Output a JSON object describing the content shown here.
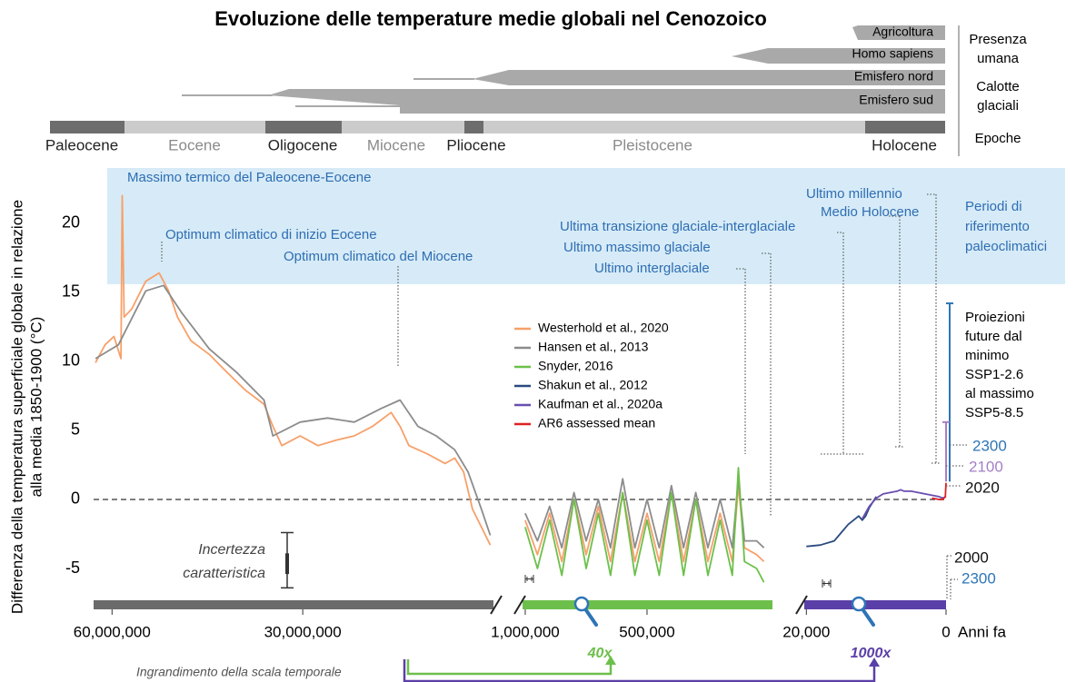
{
  "chart_data": {
    "type": "line",
    "title": "Evoluzione delle temperature medie globali nel Cenozoico",
    "ylabel": [
      "Differenza della temperatura superficiale globale in relazione",
      "alla media 1850-1900 (°C)"
    ],
    "xlabel": "Anni fa",
    "ylim": [
      -7.3,
      24
    ],
    "yticks": [
      -5,
      0,
      5,
      10,
      15,
      20
    ],
    "panels": [
      {
        "xlim": [
          62900000,
          0
        ],
        "bar_color": "#6b6b6b",
        "xticks": [
          {
            "value": 60000000,
            "label": "60,000,000"
          },
          {
            "value": 30000000,
            "label": "30,000,000"
          }
        ],
        "series": [
          {
            "color": "#f7a06a",
            "x": [
              62600000,
              61100000,
              59700000,
              58600000,
              58400000,
              58100000,
              56900000,
              54700000,
              52600000,
              51100000,
              49700000,
              47600000,
              44700000,
              41900000,
              39000000,
              36100000,
              34700000,
              33300000,
              30400000,
              27600000,
              24700000,
              21900000,
              19000000,
              16100000,
              14700000,
              13300000,
              10400000,
              7600000,
              6100000,
              4700000,
              3300000,
              1900000,
              500000
            ],
            "values": [
              9.9,
              11.2,
              11.8,
              10.2,
              22,
              13.2,
              13.8,
              15.8,
              16.4,
              15.1,
              13.2,
              11.5,
              10.5,
              9.2,
              7.9,
              6.9,
              5.3,
              3.9,
              4.6,
              3.9,
              4.3,
              4.6,
              5.3,
              6.3,
              5.3,
              3.9,
              3.3,
              2.6,
              3,
              2,
              -0.7,
              -2,
              -3.3
            ]
          },
          {
            "color": "#8c8c8c",
            "x": [
              62600000,
              59000000,
              54700000,
              51900000,
              49000000,
              44700000,
              40400000,
              36100000,
              34700000,
              30400000,
              26100000,
              21900000,
              17600000,
              14700000,
              11900000,
              9000000,
              6100000,
              4000000,
              1900000,
              500000
            ],
            "values": [
              10.2,
              11.2,
              15.1,
              15.5,
              13.5,
              10.9,
              9.2,
              7.2,
              4.6,
              5.6,
              5.9,
              5.6,
              6.6,
              7.2,
              5.3,
              4.6,
              3.6,
              2,
              -0.7,
              -2.6
            ]
          }
        ]
      },
      {
        "xlim": [
          1011000,
          0
        ],
        "bar_color": "#6dbf4b",
        "xticks": [
          {
            "value": 1000000,
            "label": "1,000,000"
          },
          {
            "value": 500000,
            "label": "500,000"
          }
        ],
        "series": [
          {
            "name": "Westerhold et al., 2020",
            "color": "#f7a06a",
            "x": [
              1000000,
              950000,
              900000,
              850000,
              800000,
              750000,
              700000,
              650000,
              600000,
              550000,
              500000,
              450000,
              400000,
              350000,
              300000,
              250000,
              200000,
              150000,
              125000,
              100000,
              50000,
              20000
            ],
            "values": [
              -1.5,
              -4,
              -1,
              -4.5,
              0,
              -4,
              -0.5,
              -4.5,
              0.5,
              -4.5,
              -1,
              -4.5,
              0.5,
              -4.5,
              0,
              -4.5,
              -1,
              -4.5,
              1,
              -3.5,
              -4,
              -4.5
            ]
          },
          {
            "name": "Hansen et al., 2013",
            "color": "#8c8c8c",
            "x": [
              1000000,
              950000,
              900000,
              850000,
              800000,
              750000,
              700000,
              650000,
              600000,
              550000,
              500000,
              450000,
              400000,
              350000,
              300000,
              250000,
              200000,
              150000,
              125000,
              100000,
              50000,
              20000
            ],
            "values": [
              -1,
              -3,
              -0.5,
              -3.5,
              0.5,
              -3,
              0,
              -3.5,
              1.5,
              -3.5,
              0,
              -3.5,
              1,
              -3.5,
              0.5,
              -3.5,
              0,
              -3.5,
              1.5,
              -3,
              -3,
              -3.5
            ]
          },
          {
            "name": "Snyder, 2016",
            "color": "#6cc04a",
            "x": [
              1000000,
              950000,
              900000,
              850000,
              800000,
              750000,
              700000,
              650000,
              600000,
              550000,
              500000,
              450000,
              400000,
              350000,
              300000,
              250000,
              200000,
              150000,
              125000,
              100000,
              50000,
              20000
            ],
            "values": [
              -2,
              -5,
              -1.5,
              -5.5,
              0,
              -5,
              -1,
              -5.5,
              0.5,
              -5.5,
              -1.5,
              -5.5,
              0.5,
              -5.5,
              0,
              -5.5,
              -1.5,
              -5.5,
              2.3,
              -4.5,
              -5,
              -6
            ]
          }
        ]
      },
      {
        "xlim": [
          20300,
          0
        ],
        "bar_color": "#5b3fa8",
        "xticks": [
          {
            "value": 20000,
            "label": "20,000"
          },
          0
        ],
        "series": [
          {
            "name": "Shakun et al., 2012",
            "color": "#2a4a7f",
            "x": [
              20000,
              18000,
              16000,
              15000,
              14000,
              13000,
              12500,
              12000,
              11500,
              11000,
              10000
            ],
            "values": [
              -3.4,
              -3.3,
              -3,
              -2.4,
              -1.8,
              -1.4,
              -1.2,
              -1.5,
              -1.2,
              -0.6,
              0.2
            ]
          },
          {
            "name": "Kaufman et al., 2020a",
            "color": "#6a4db0",
            "x": [
              12000,
              11000,
              10000,
              9000,
              8000,
              7000,
              6500,
              6000,
              5000,
              4000,
              3000,
              2000,
              1000,
              500,
              0
            ],
            "values": [
              -1.4,
              -0.5,
              0.1,
              0.4,
              0.5,
              0.6,
              0.7,
              0.6,
              0.6,
              0.5,
              0.4,
              0.3,
              0.2,
              0.1,
              0.2
            ]
          },
          {
            "name": "AR6 assessed mean",
            "color": "#e02020",
            "x": [
              2000,
              1000,
              500,
              100,
              0
            ],
            "values": [
              0.1,
              0,
              0,
              0.2,
              1.2
            ]
          }
        ]
      }
    ],
    "projections": [
      {
        "color": "#2e75b6",
        "low": 1.3,
        "high": 14.2
      },
      {
        "color": "#a57fc8",
        "low": 1.3,
        "high": 5.6
      }
    ],
    "uncertainty": {
      "label": [
        "Incertezza",
        "caratteristica"
      ],
      "low": -6.4,
      "high": -2.4
    },
    "annotations": [
      "Massimo termico del Paleocene-Eocene",
      "Optimum climatico di inizio Eocene",
      "Optimum climatico del Miocene",
      "Ultima transizione glaciale-interglaciale",
      "Ultimo massimo glaciale",
      "Ultimo interglaciale",
      "Ultimo millennio",
      "Medio Holocene"
    ],
    "reference_periods": [
      "Periodi di",
      "riferimento",
      "paleoclimatici"
    ],
    "projection_note": [
      "Proiezioni",
      "future dal",
      "minimo",
      "SSP1-2.6",
      "al massimo",
      "SSP5-8.5"
    ],
    "year_labels": [
      "2300",
      "2100",
      "2020",
      "2000",
      "2300"
    ],
    "zoom": {
      "label": "Ingrandimento della scala temporale",
      "factors": [
        "40x",
        "1000x"
      ]
    }
  },
  "timeline": {
    "rows": [
      "Agricoltura",
      "Homo sapiens",
      "Emisfero nord",
      "Emisfero sud"
    ],
    "groups": [
      [
        "Presenza",
        "umana"
      ],
      [
        "Calotte",
        "glaciali"
      ],
      [
        "Epoche"
      ]
    ],
    "epochs": [
      "Paleocene",
      "Eocene",
      "Oligocene",
      "Miocene",
      "Pliocene",
      "Pleistocene",
      "Holocene"
    ]
  }
}
